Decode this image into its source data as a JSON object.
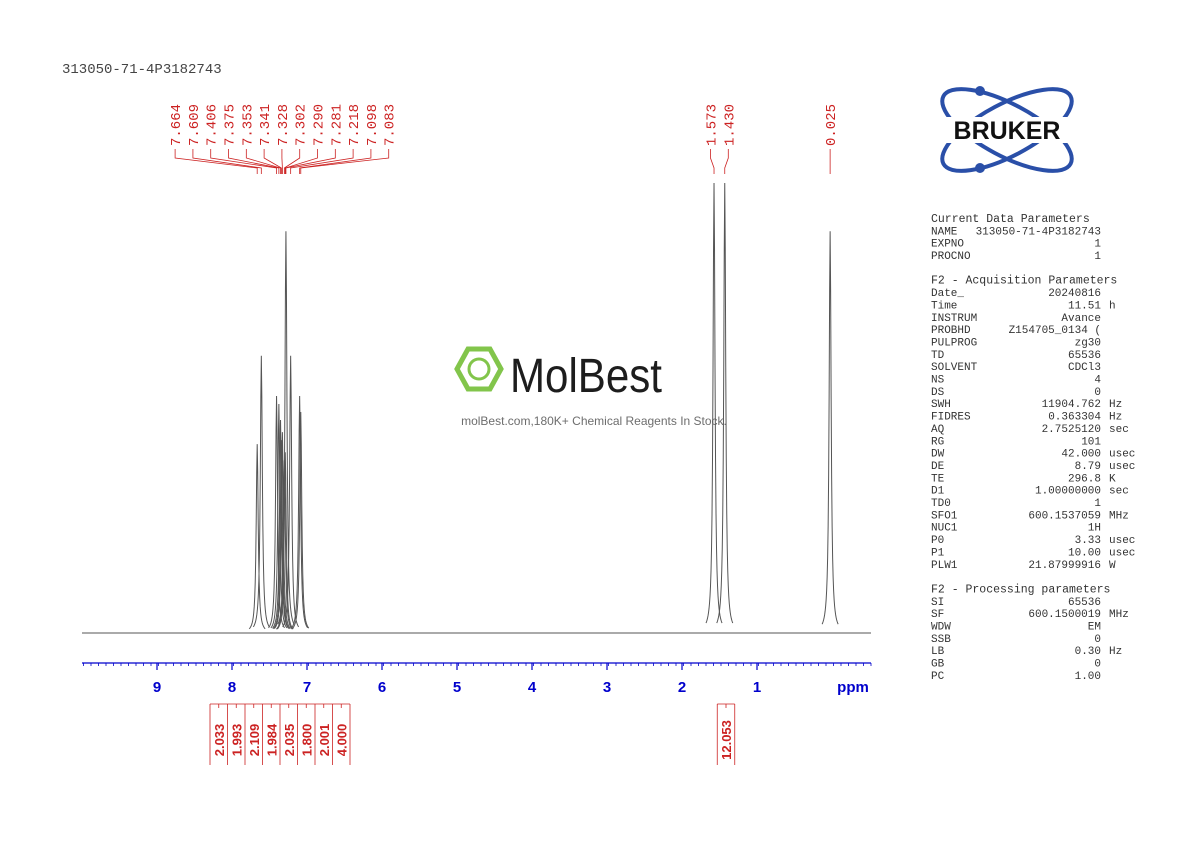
{
  "title": "313050-71-4P3182743",
  "logo": "BRUKER",
  "watermark": {
    "brand": "MolBest",
    "tagline": "molBest.com,180K+ Chemical Reagents In Stock."
  },
  "chart_data": {
    "type": "nmr",
    "x_label": "ppm",
    "xlim": [
      10,
      -0.52
    ],
    "xticks": [
      9,
      8,
      7,
      6,
      5,
      4,
      3,
      2,
      1
    ],
    "ylim": [
      0,
      112
    ],
    "color": "#555555",
    "label_color": "#cc2222",
    "axis_color": "#0000cc",
    "x": [
      7.664,
      7.609,
      7.406,
      7.375,
      7.353,
      7.341,
      7.328,
      7.302,
      7.29,
      7.281,
      7.218,
      7.098,
      7.083,
      1.573,
      1.43,
      0.025
    ],
    "x_labels": [
      "7.664",
      "7.609",
      "7.406",
      "7.375",
      "7.353",
      "7.341",
      "7.328",
      "7.302",
      "7.290",
      "7.281",
      "7.218",
      "7.098",
      "7.083",
      "1.573",
      "1.430",
      "0.025"
    ],
    "values": [
      47,
      69,
      59,
      57,
      53,
      48,
      50,
      43,
      45,
      100,
      69,
      59,
      55,
      112,
      112,
      100
    ],
    "integrals": [
      2.033,
      1.993,
      2.109,
      1.984,
      2.035,
      1.8,
      2.001,
      4,
      12.053
    ],
    "integral_labels": [
      "2.033",
      "1.993",
      "2.109",
      "1.984",
      "2.035",
      "1.800",
      "2.001",
      "4.000",
      "12.053"
    ]
  },
  "parameters": [
    {
      "title": "Current Data Parameters",
      "rows": [
        [
          "NAME",
          "313050-71-4P3182743",
          ""
        ],
        [
          "EXPNO",
          "1",
          ""
        ],
        [
          "PROCNO",
          "1",
          ""
        ]
      ]
    },
    {
      "title": "F2 - Acquisition Parameters",
      "rows": [
        [
          "Date_",
          "20240816",
          ""
        ],
        [
          "Time",
          "11.51",
          "h"
        ],
        [
          "INSTRUM",
          "Avance",
          ""
        ],
        [
          "PROBHD",
          "Z154705_0134 (",
          ""
        ],
        [
          "PULPROG",
          "zg30",
          ""
        ],
        [
          "TD",
          "65536",
          ""
        ],
        [
          "SOLVENT",
          "CDCl3",
          ""
        ],
        [
          "NS",
          "4",
          ""
        ],
        [
          "DS",
          "0",
          ""
        ],
        [
          "SWH",
          "11904.762",
          "Hz"
        ],
        [
          "FIDRES",
          "0.363304",
          "Hz"
        ],
        [
          "AQ",
          "2.7525120",
          "sec"
        ],
        [
          "RG",
          "101",
          ""
        ],
        [
          "DW",
          "42.000",
          "usec"
        ],
        [
          "DE",
          "8.79",
          "usec"
        ],
        [
          "TE",
          "296.8",
          "K"
        ],
        [
          "D1",
          "1.00000000",
          "sec"
        ],
        [
          "TD0",
          "1",
          ""
        ],
        [
          "SFO1",
          "600.1537059",
          "MHz"
        ],
        [
          "NUC1",
          "1H",
          ""
        ],
        [
          "P0",
          "3.33",
          "usec"
        ],
        [
          "P1",
          "10.00",
          "usec"
        ],
        [
          "PLW1",
          "21.87999916",
          "W"
        ]
      ]
    },
    {
      "title": "F2 - Processing parameters",
      "rows": [
        [
          "SI",
          "65536",
          ""
        ],
        [
          "SF",
          "600.1500019",
          "MHz"
        ],
        [
          "WDW",
          "EM",
          ""
        ],
        [
          "SSB",
          "0",
          ""
        ],
        [
          "LB",
          "0.30",
          "Hz"
        ],
        [
          "GB",
          "0",
          ""
        ],
        [
          "PC",
          "1.00",
          ""
        ]
      ]
    }
  ]
}
